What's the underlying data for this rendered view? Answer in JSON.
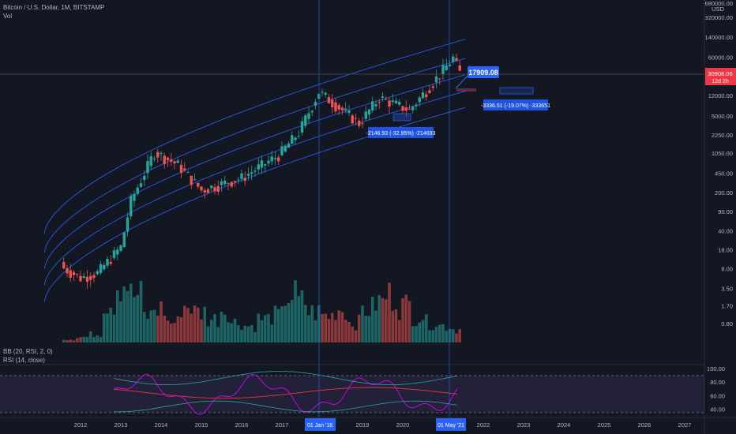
{
  "header": {
    "symbol_line": "Bitcoin / U.S. Dollar, 1M, BITSTAMP",
    "vol_label": "Vol"
  },
  "price_axis": {
    "currency": "USD",
    "top_value": "680000.00",
    "ticks": [
      "320000.00",
      "140000.00",
      "60000.00",
      "12000.00",
      "5000.00",
      "2250.00",
      "1050.00",
      "450.00",
      "200.00",
      "90.00",
      "40.00",
      "18.00",
      "8.00",
      "3.50",
      "1.70",
      "0.80"
    ],
    "last_price": "30908.06",
    "countdown": "12d 2h"
  },
  "rsi_axis": {
    "ticks": [
      "100.00",
      "80.00",
      "60.00",
      "40.00"
    ]
  },
  "time_axis": {
    "labels": [
      "2012",
      "2013",
      "2014",
      "2015",
      "2016",
      "2017",
      "2019",
      "2020",
      "2022",
      "2023",
      "2024",
      "2025",
      "2026",
      "2027"
    ],
    "highlight_labels": [
      "01 Jan '18",
      "01 May '21"
    ]
  },
  "indicators": {
    "bb_label": "BB (20, RSI, 2, 0)",
    "rsi_label": "RSI (14, close)"
  },
  "annotations": {
    "projection_price": "17909.08",
    "measure_1": "-2146.93 (-32.95%) -214693",
    "measure_2": "-3336.51 (-19.07%) -333651"
  },
  "colors": {
    "background": "#131722",
    "up": "#26a69a",
    "down": "#ef5350",
    "channel": "#2962ff",
    "label_blue": "#2962ff",
    "last_price": "#f23645",
    "rsi_line": "#d500f9",
    "bb_mid": "#e53935",
    "bb_band": "#26a69a",
    "rsi_zone": "#7e57c2"
  },
  "chart_data": {
    "type": "candlestick",
    "scale": "log",
    "interval": "1M",
    "ylim": [
      0.5,
      680000
    ],
    "x_range": [
      "2011-01",
      "2027-12"
    ],
    "candles_yearly_summary": [
      {
        "x": "2011-08",
        "close": 8.2
      },
      {
        "x": "2012-01",
        "close": 5.5
      },
      {
        "x": "2012-06",
        "close": 6.7
      },
      {
        "x": "2013-01",
        "close": 20
      },
      {
        "x": "2013-04",
        "close": 140
      },
      {
        "x": "2013-11",
        "close": 1100
      },
      {
        "x": "2014-06",
        "close": 640
      },
      {
        "x": "2015-01",
        "close": 220
      },
      {
        "x": "2016-01",
        "close": 370
      },
      {
        "x": "2016-12",
        "close": 960
      },
      {
        "x": "2017-06",
        "close": 2500
      },
      {
        "x": "2017-12",
        "close": 13800
      },
      {
        "x": "2018-12",
        "close": 3700
      },
      {
        "x": "2019-06",
        "close": 10800
      },
      {
        "x": "2020-03",
        "close": 6400
      },
      {
        "x": "2020-12",
        "close": 29000
      },
      {
        "x": "2021-04",
        "close": 57700
      },
      {
        "x": "2021-06",
        "close": 30908
      }
    ],
    "volume_relative": [
      0.05,
      0.08,
      0.12,
      0.6,
      0.9,
      0.7,
      0.4,
      0.5,
      0.3,
      0.55,
      0.45,
      0.35,
      0.5,
      0.3,
      0.25,
      0.35,
      0.4,
      0.7,
      0.6,
      0.45,
      0.4,
      0.5,
      0.3,
      0.5,
      0.6,
      0.7,
      0.55,
      0.4,
      0.3,
      0.25,
      0.2
    ],
    "rsi_ylim": [
      30,
      100
    ]
  }
}
